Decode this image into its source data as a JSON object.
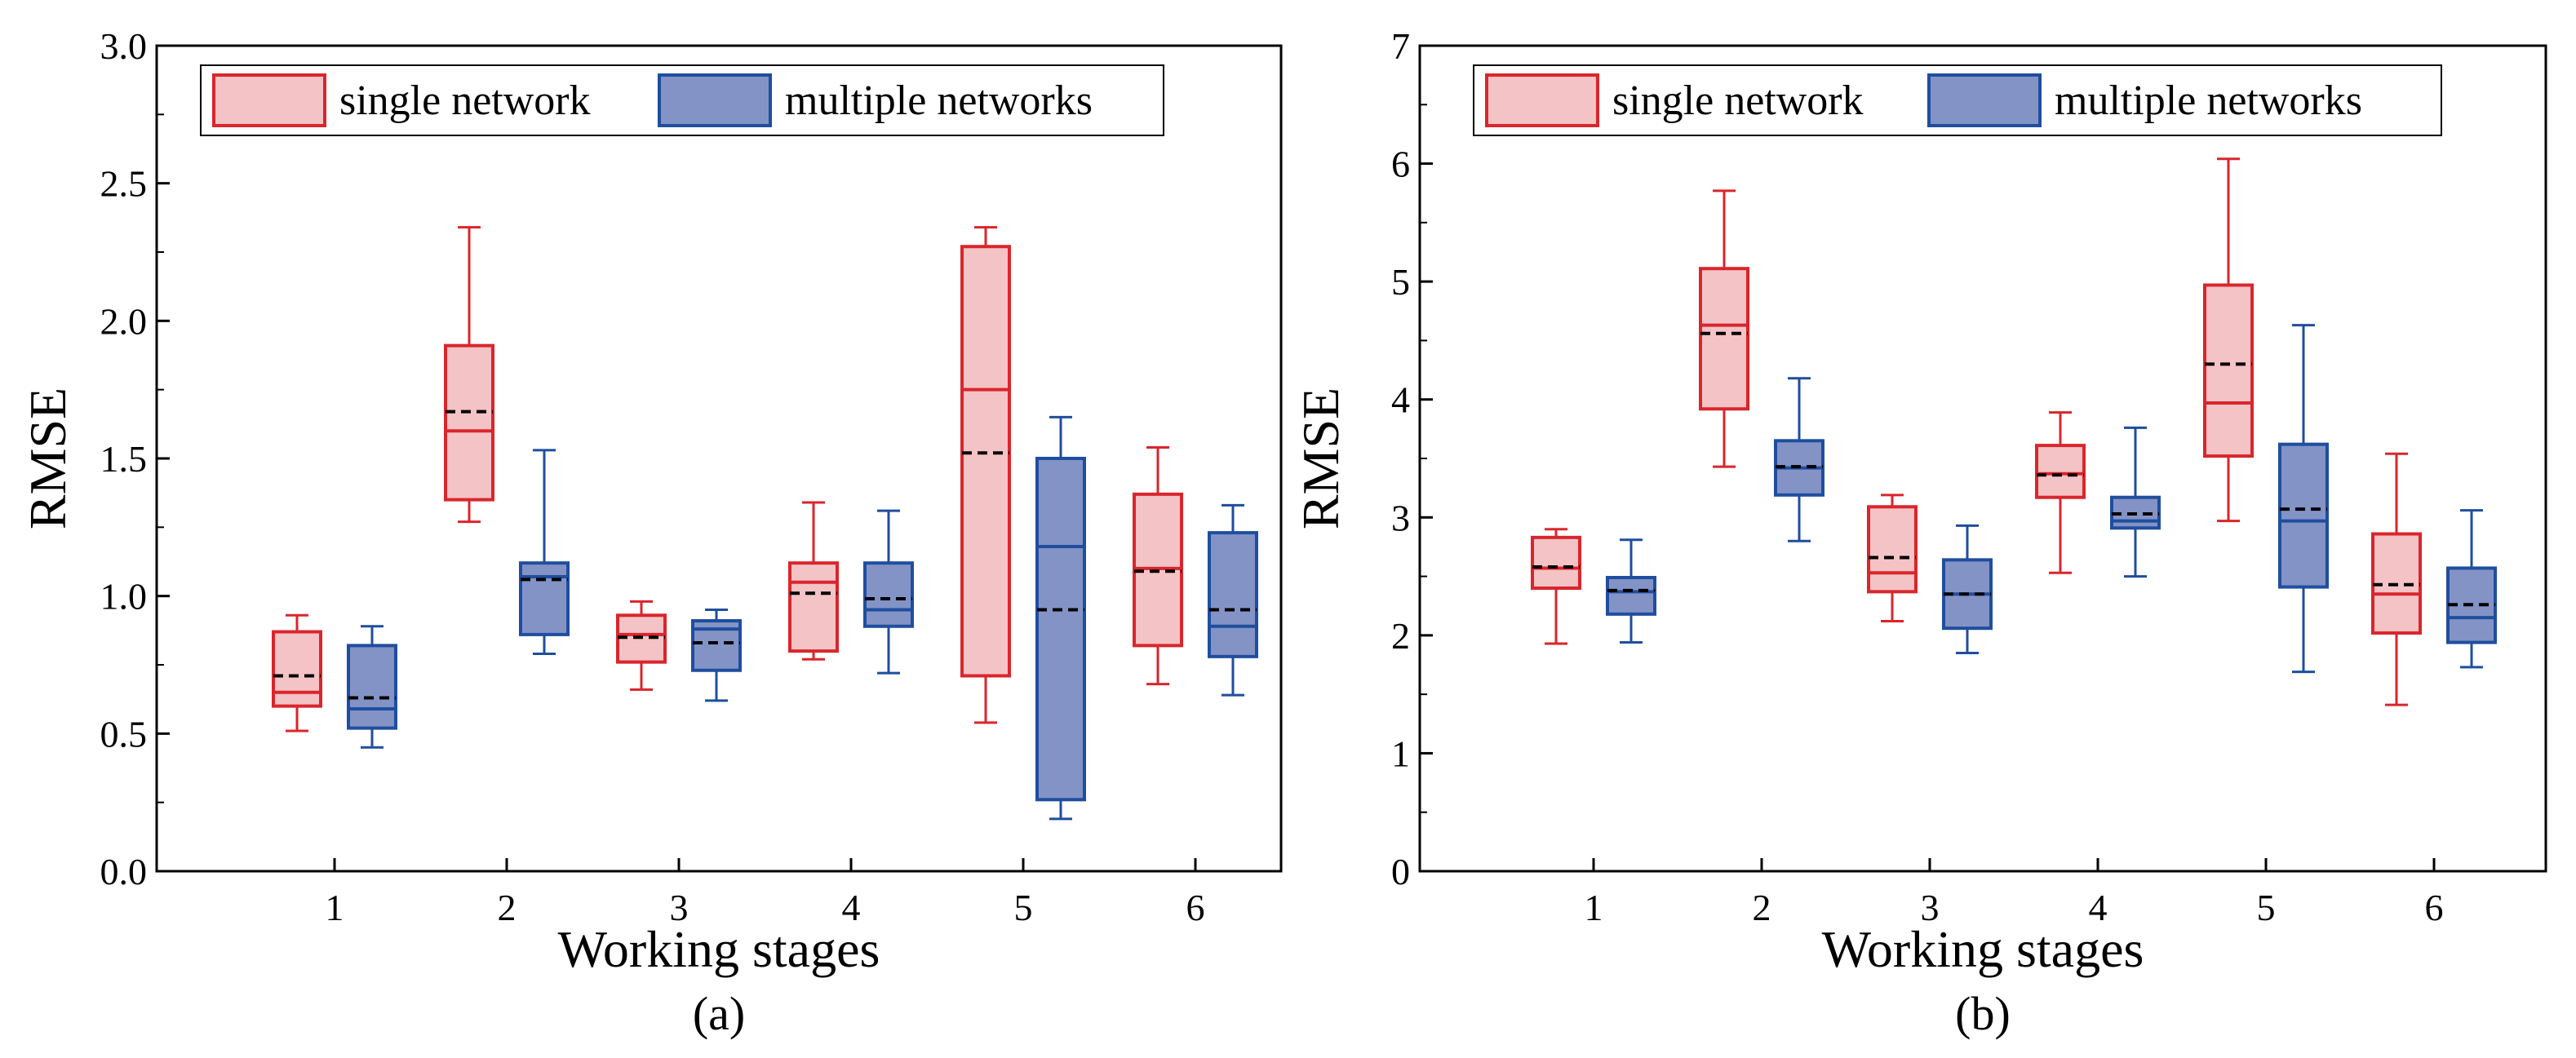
{
  "colors": {
    "single_fill": "#f4c3c6",
    "single_stroke": "#d9262c",
    "multi_fill": "#8393c6",
    "multi_stroke": "#1f4e9e",
    "mean_line": "#000000"
  },
  "chart_data": [
    {
      "type": "box",
      "caption": "(a)",
      "xlabel": "Working stages",
      "ylabel": "RMSE",
      "categories": [
        "1",
        "2",
        "3",
        "4",
        "5",
        "6"
      ],
      "ylim": [
        0,
        3.0
      ],
      "yticks": [
        "0.0",
        "0.5",
        "1.0",
        "1.5",
        "2.0",
        "2.5",
        "3.0"
      ],
      "legend_position": "top-center",
      "series": [
        {
          "name": "single network",
          "boxes": [
            {
              "min": 0.51,
              "q1": 0.6,
              "median": 0.65,
              "q3": 0.87,
              "max": 0.93,
              "mean": 0.71
            },
            {
              "min": 1.27,
              "q1": 1.35,
              "median": 1.6,
              "q3": 1.91,
              "max": 2.34,
              "mean": 1.67
            },
            {
              "min": 0.66,
              "q1": 0.76,
              "median": 0.86,
              "q3": 0.93,
              "max": 0.98,
              "mean": 0.85
            },
            {
              "min": 0.77,
              "q1": 0.8,
              "median": 1.05,
              "q3": 1.12,
              "max": 1.34,
              "mean": 1.01
            },
            {
              "min": 0.54,
              "q1": 0.71,
              "median": 1.75,
              "q3": 2.27,
              "max": 2.34,
              "mean": 1.52
            },
            {
              "min": 0.68,
              "q1": 0.82,
              "median": 1.1,
              "q3": 1.37,
              "max": 1.54,
              "mean": 1.09
            }
          ]
        },
        {
          "name": "multiple networks",
          "boxes": [
            {
              "min": 0.45,
              "q1": 0.52,
              "median": 0.59,
              "q3": 0.82,
              "max": 0.89,
              "mean": 0.63
            },
            {
              "min": 0.79,
              "q1": 0.86,
              "median": 1.07,
              "q3": 1.12,
              "max": 1.53,
              "mean": 1.06
            },
            {
              "min": 0.62,
              "q1": 0.73,
              "median": 0.88,
              "q3": 0.91,
              "max": 0.95,
              "mean": 0.83
            },
            {
              "min": 0.72,
              "q1": 0.89,
              "median": 0.95,
              "q3": 1.12,
              "max": 1.31,
              "mean": 0.99
            },
            {
              "min": 0.19,
              "q1": 0.26,
              "median": 1.18,
              "q3": 1.5,
              "max": 1.65,
              "mean": 0.95
            },
            {
              "min": 0.64,
              "q1": 0.78,
              "median": 0.89,
              "q3": 1.23,
              "max": 1.33,
              "mean": 0.95
            }
          ]
        }
      ]
    },
    {
      "type": "box",
      "caption": "(b)",
      "xlabel": "Working stages",
      "ylabel": "RMSE",
      "categories": [
        "1",
        "2",
        "3",
        "4",
        "5",
        "6"
      ],
      "ylim": [
        0,
        7
      ],
      "yticks": [
        "0",
        "1",
        "2",
        "3",
        "4",
        "5",
        "6",
        "7"
      ],
      "legend_position": "top-center",
      "series": [
        {
          "name": "single network",
          "boxes": [
            {
              "min": 1.93,
              "q1": 2.4,
              "median": 2.57,
              "q3": 2.83,
              "max": 2.9,
              "mean": 2.58
            },
            {
              "min": 3.43,
              "q1": 3.92,
              "median": 4.63,
              "q3": 5.11,
              "max": 5.77,
              "mean": 4.56
            },
            {
              "min": 2.12,
              "q1": 2.37,
              "median": 2.53,
              "q3": 3.09,
              "max": 3.19,
              "mean": 2.66
            },
            {
              "min": 2.53,
              "q1": 3.17,
              "median": 3.37,
              "q3": 3.61,
              "max": 3.89,
              "mean": 3.36
            },
            {
              "min": 2.97,
              "q1": 3.52,
              "median": 3.97,
              "q3": 4.97,
              "max": 6.04,
              "mean": 4.3
            },
            {
              "min": 1.41,
              "q1": 2.02,
              "median": 2.35,
              "q3": 2.86,
              "max": 3.54,
              "mean": 2.43
            }
          ]
        },
        {
          "name": "multiple networks",
          "boxes": [
            {
              "min": 1.94,
              "q1": 2.18,
              "median": 2.37,
              "q3": 2.49,
              "max": 2.81,
              "mean": 2.38
            },
            {
              "min": 2.8,
              "q1": 3.19,
              "median": 3.42,
              "q3": 3.65,
              "max": 4.18,
              "mean": 3.43
            },
            {
              "min": 1.85,
              "q1": 2.06,
              "median": 2.35,
              "q3": 2.64,
              "max": 2.93,
              "mean": 2.35
            },
            {
              "min": 2.5,
              "q1": 2.91,
              "median": 2.97,
              "q3": 3.17,
              "max": 3.76,
              "mean": 3.03
            },
            {
              "min": 1.69,
              "q1": 2.41,
              "median": 2.97,
              "q3": 3.62,
              "max": 4.63,
              "mean": 3.07
            },
            {
              "min": 1.73,
              "q1": 1.94,
              "median": 2.15,
              "q3": 2.57,
              "max": 3.06,
              "mean": 2.26
            }
          ]
        }
      ]
    }
  ]
}
